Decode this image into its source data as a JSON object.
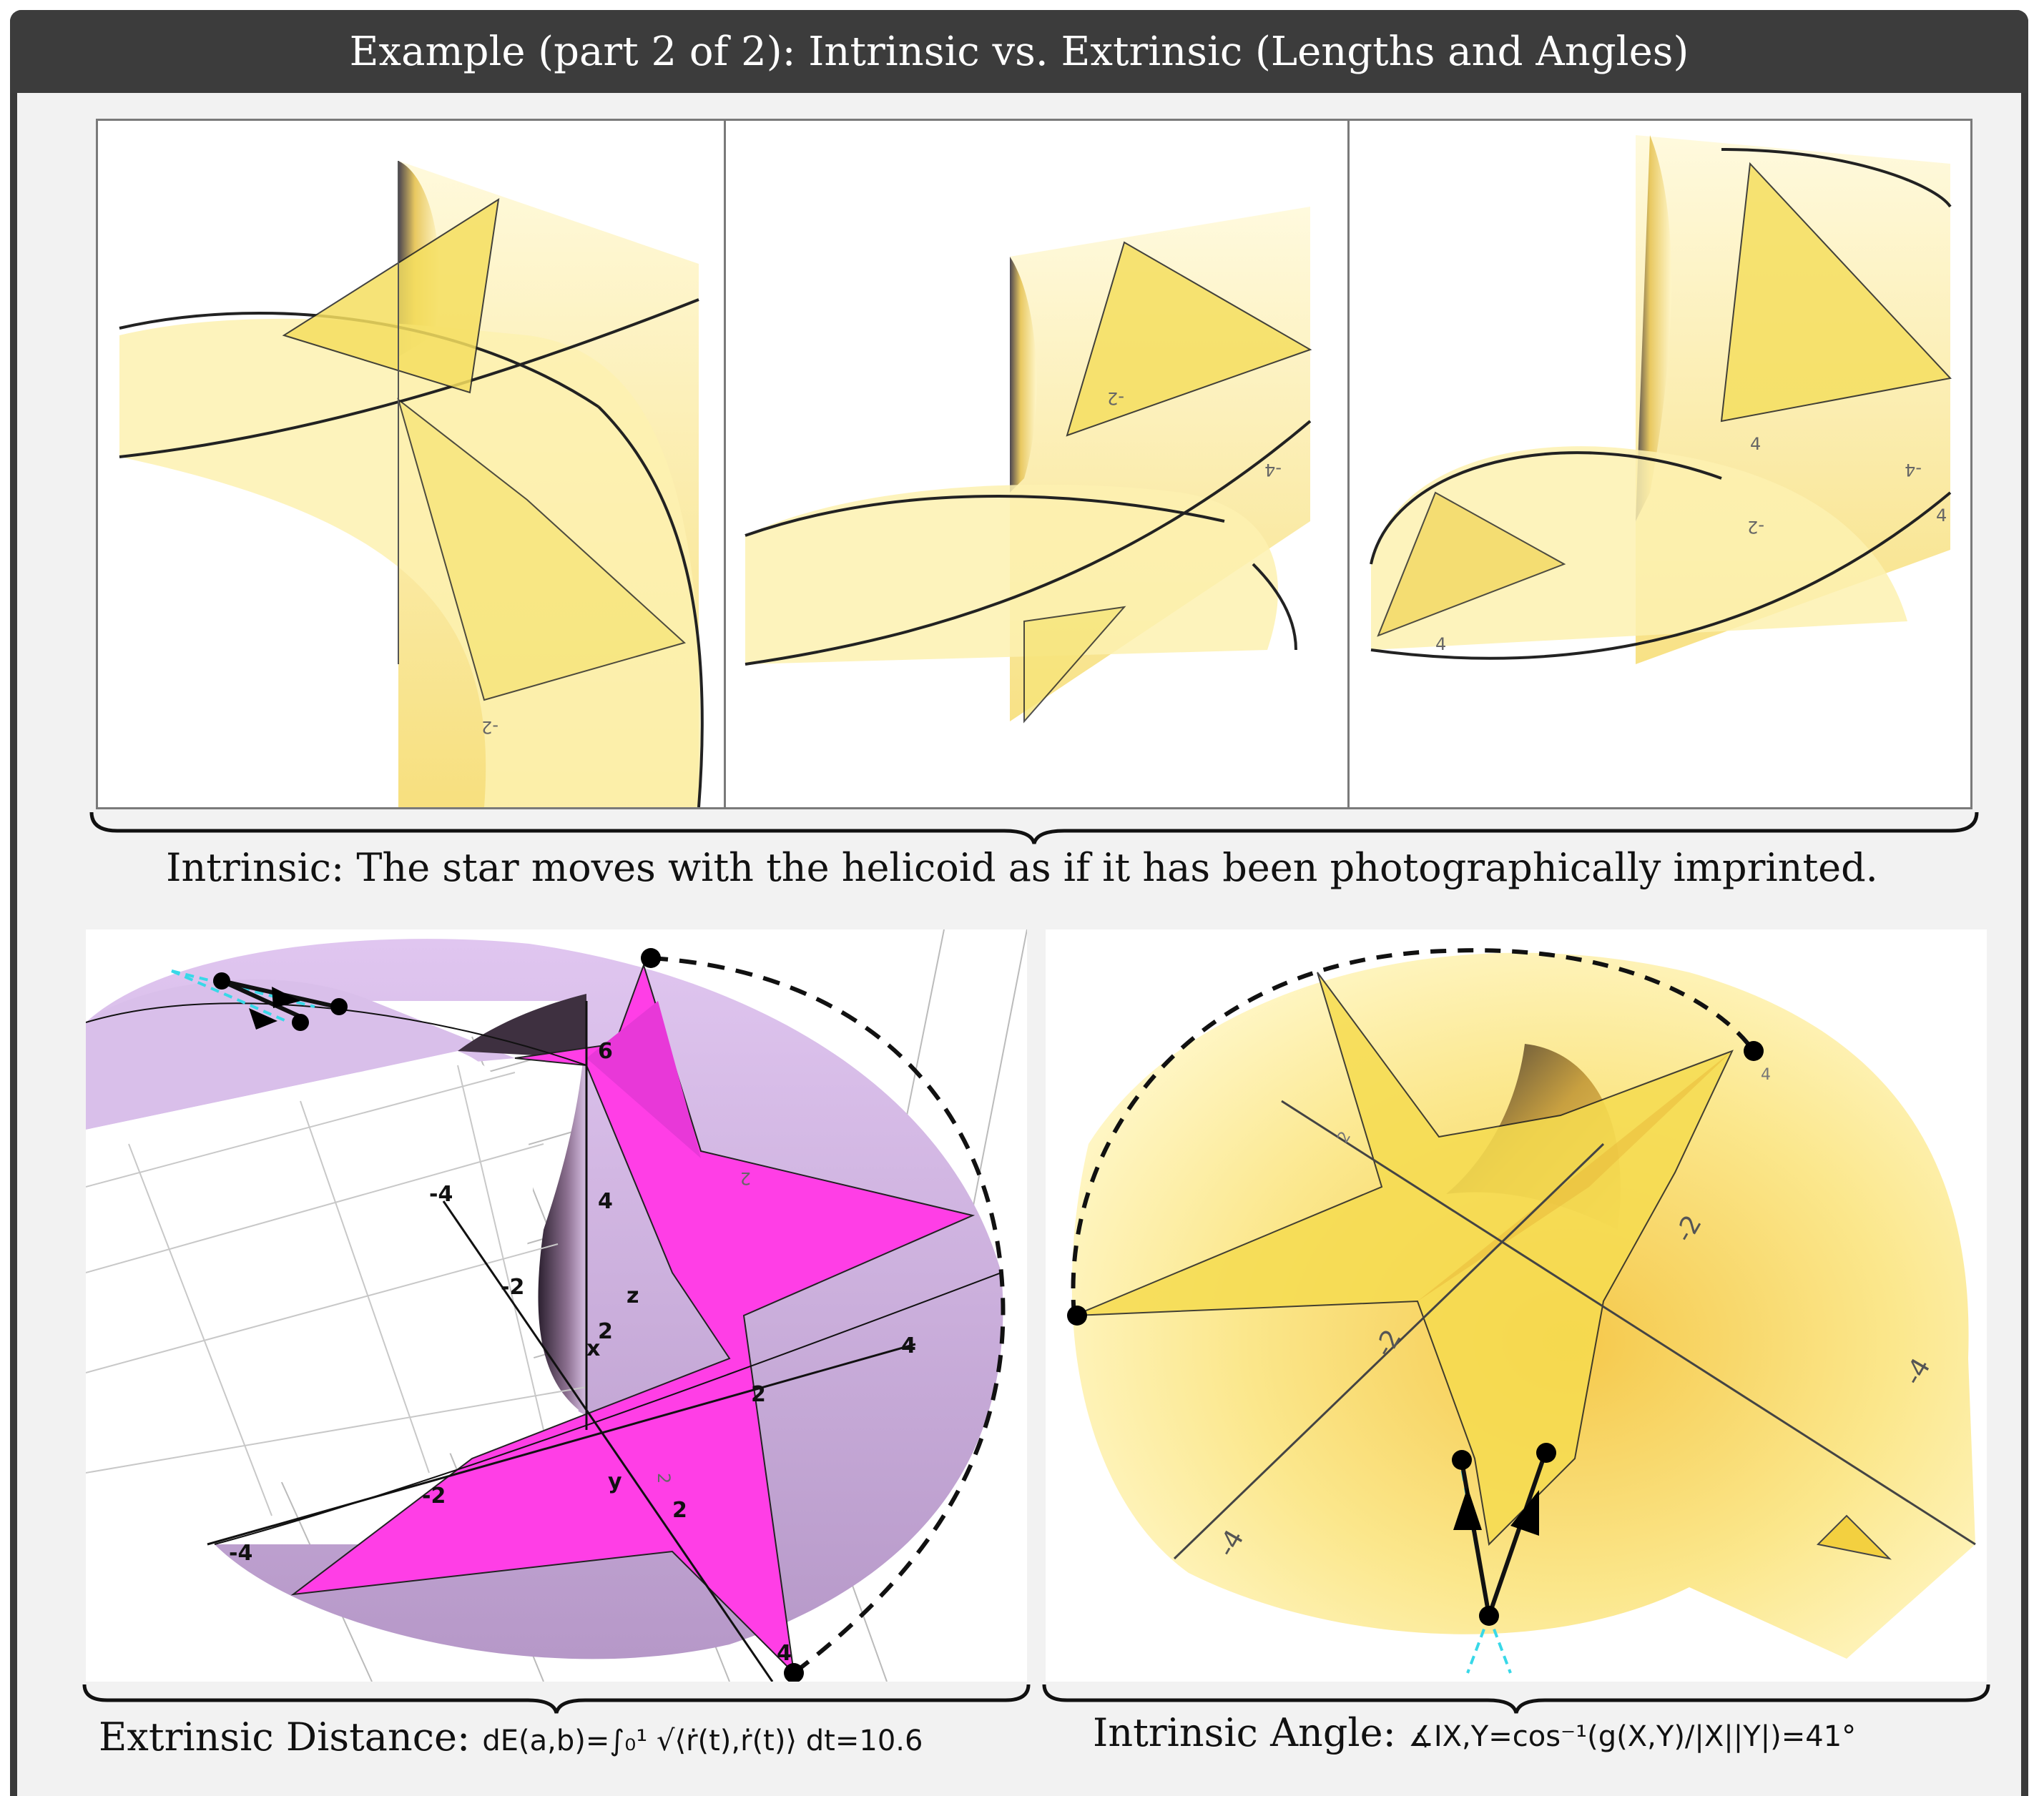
{
  "title": "Example (part 2 of 2):  Intrinsic vs.  Extrinsic (Lengths and Angles)",
  "top_panels": {
    "axis_labels": [
      "-2",
      "-2",
      "-4",
      "-2",
      "4",
      "4",
      "-4",
      "4"
    ]
  },
  "intrinsic_caption": "Intrinsic:  The star moves with the helicoid as if it has been photographically imprinted.",
  "extrinsic_panel": {
    "ticks": [
      "6",
      "4",
      "-4",
      "-2",
      "z",
      "2",
      "x",
      "4",
      "2",
      "-2",
      "y",
      "2",
      "-4",
      "4",
      "2",
      "2"
    ]
  },
  "angle_panel": {
    "ticks": [
      "-2",
      "-2",
      "-4",
      "-4",
      "4",
      "2"
    ]
  },
  "extrinsic_caption": {
    "label": "Extrinsic Distance:",
    "formula": "dE(a,b)=∫₀¹ √⟨ṙ(t),ṙ(t)⟩ dt=10.6"
  },
  "angle_caption": {
    "label": "Intrinsic Angle:",
    "formula": "∡IX,Y=cos⁻¹(g(X,Y)/|X||Y|)=41°"
  },
  "colors": {
    "helicoid_yellow": "#fbef9a",
    "helicoid_purple": "#c9a6d8",
    "star_magenta": "#ff3ee6",
    "path_cyan": "#38d8e8",
    "title_bg": "#3c3c3c"
  }
}
